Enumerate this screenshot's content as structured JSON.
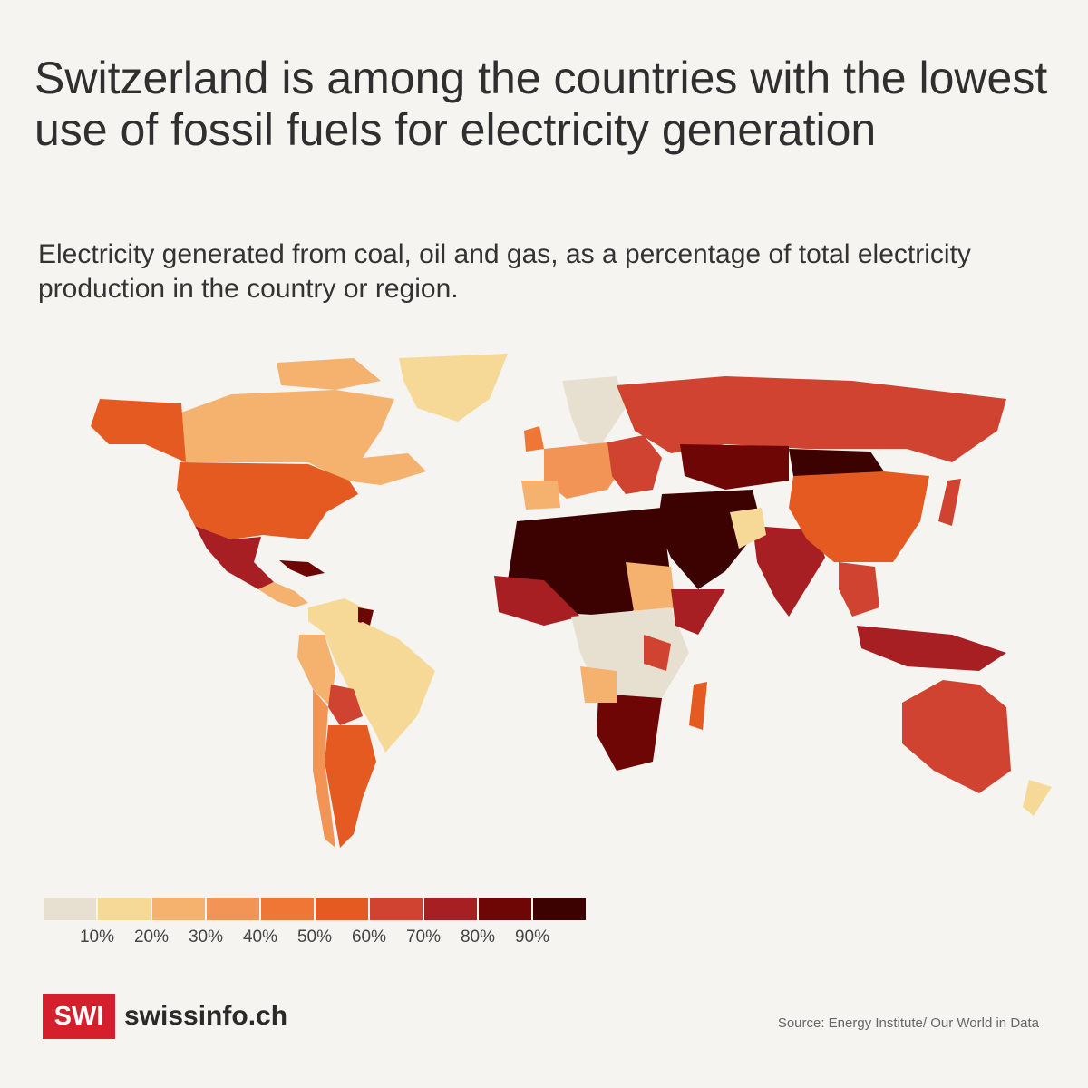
{
  "header": {
    "title": "Switzerland is among the countries with the lowest use of fossil fuels for electricity generation",
    "subtitle": "Electricity generated from coal, oil and gas, as a percentage of total electricity production in the country or region."
  },
  "legend": {
    "colors": [
      "#e7e0d0",
      "#f6d996",
      "#f4b26e",
      "#f29456",
      "#ef7634",
      "#e45a20",
      "#cf4330",
      "#a71f22",
      "#6e0606",
      "#3c0202"
    ],
    "labels": [
      "10%",
      "20%",
      "30%",
      "40%",
      "50%",
      "60%",
      "70%",
      "80%",
      "90%"
    ]
  },
  "footer": {
    "brand": "SWI",
    "site": "swissinfo.ch",
    "source": "Source:  Energy Institute/ Our World in Data"
  }
}
